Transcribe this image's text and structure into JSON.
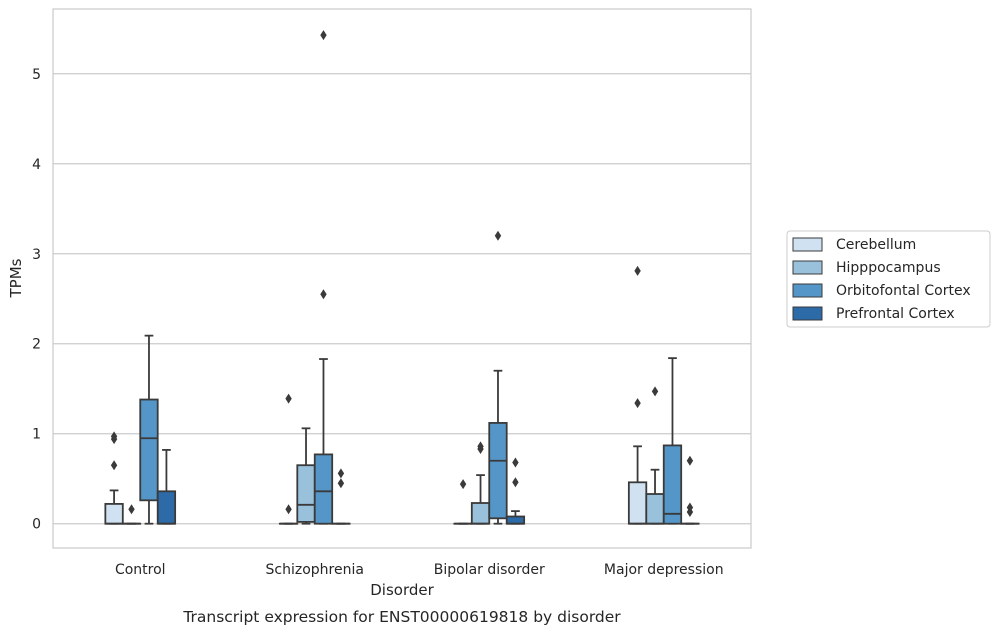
{
  "chart_data": {
    "type": "box",
    "caption": "Transcript expression for ENST00000619818 by disorder",
    "xlabel": "Disorder",
    "ylabel": "TPMs",
    "ylim": [
      -0.27,
      5.72
    ],
    "yticks": [
      0,
      1,
      2,
      3,
      4,
      5
    ],
    "grid": "horizontal",
    "legend_position": "right",
    "categories": [
      "Control",
      "Schizophrenia",
      "Bipolar disorder",
      "Major depression"
    ],
    "series": [
      {
        "name": "Cerebellum",
        "color": "#d0e1f2",
        "boxes": [
          {
            "whisker_low": 0,
            "q1": 0,
            "median": 0,
            "q3": 0.22,
            "whisker_high": 0.37,
            "outliers": [
              0.65,
              0.94,
              0.97
            ]
          },
          {
            "whisker_low": 0,
            "q1": 0,
            "median": 0,
            "q3": 0,
            "whisker_high": 0,
            "outliers": [
              0.16,
              1.39
            ]
          },
          {
            "whisker_low": 0,
            "q1": 0,
            "median": 0,
            "q3": 0,
            "whisker_high": 0,
            "outliers": [
              0.44
            ]
          },
          {
            "whisker_low": 0,
            "q1": 0,
            "median": 0,
            "q3": 0.46,
            "whisker_high": 0.86,
            "outliers": [
              1.34,
              2.81
            ]
          }
        ]
      },
      {
        "name": "Hipppocampus",
        "color": "#9ac1dc",
        "boxes": [
          {
            "whisker_low": 0,
            "q1": 0,
            "median": 0,
            "q3": 0,
            "whisker_high": 0,
            "outliers": [
              0.16
            ]
          },
          {
            "whisker_low": 0,
            "q1": 0.02,
            "median": 0.21,
            "q3": 0.65,
            "whisker_high": 1.06,
            "outliers": []
          },
          {
            "whisker_low": 0,
            "q1": 0,
            "median": 0,
            "q3": 0.23,
            "whisker_high": 0.54,
            "outliers": [
              0.83,
              0.86
            ]
          },
          {
            "whisker_low": 0,
            "q1": 0,
            "median": 0,
            "q3": 0.33,
            "whisker_high": 0.6,
            "outliers": [
              1.47
            ]
          }
        ]
      },
      {
        "name": "Orbitofontal Cortex",
        "color": "#5596c8",
        "boxes": [
          {
            "whisker_low": 0,
            "q1": 0.26,
            "median": 0.95,
            "q3": 1.38,
            "whisker_high": 2.09,
            "outliers": []
          },
          {
            "whisker_low": 0,
            "q1": 0,
            "median": 0.36,
            "q3": 0.77,
            "whisker_high": 1.83,
            "outliers": [
              2.55,
              5.43
            ]
          },
          {
            "whisker_low": 0,
            "q1": 0.06,
            "median": 0.7,
            "q3": 1.12,
            "whisker_high": 1.7,
            "outliers": [
              3.2
            ]
          },
          {
            "whisker_low": 0,
            "q1": 0,
            "median": 0.11,
            "q3": 0.87,
            "whisker_high": 1.84,
            "outliers": []
          }
        ]
      },
      {
        "name": "Prefrontal Cortex",
        "color": "#2c6ba8",
        "boxes": [
          {
            "whisker_low": 0,
            "q1": 0,
            "median": 0,
            "q3": 0.36,
            "whisker_high": 0.82,
            "outliers": []
          },
          {
            "whisker_low": 0,
            "q1": 0,
            "median": 0,
            "q3": 0,
            "whisker_high": 0,
            "outliers": [
              0.45,
              0.56
            ]
          },
          {
            "whisker_low": 0,
            "q1": 0,
            "median": 0,
            "q3": 0.08,
            "whisker_high": 0.14,
            "outliers": [
              0.46,
              0.68
            ]
          },
          {
            "whisker_low": 0,
            "q1": 0,
            "median": 0,
            "q3": 0,
            "whisker_high": 0,
            "outliers": [
              0.13,
              0.18,
              0.7
            ]
          }
        ]
      }
    ]
  }
}
